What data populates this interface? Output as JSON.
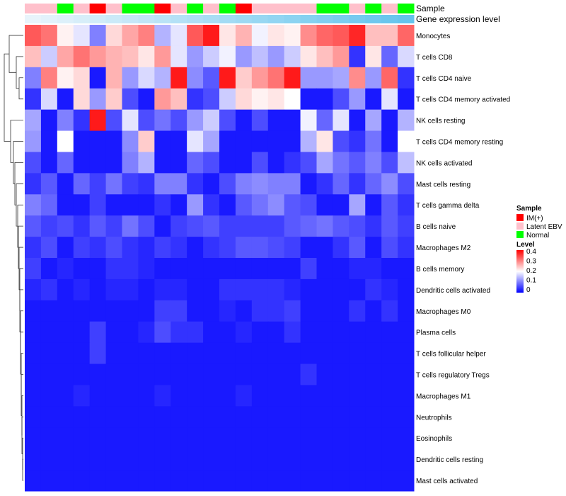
{
  "chart_data": {
    "type": "heatmap",
    "title": "",
    "annotation_labels": {
      "sample": "Sample",
      "expression": "Gene expression level"
    },
    "colors": {
      "low": "#0000ff",
      "mid": "#ffffff",
      "high": "#ff0000",
      "IM(+)": "#ff0000",
      "Latent EBV": "#ffc0cb",
      "Normal": "#00ff00"
    },
    "value_range": [
      0,
      0.4
    ],
    "value_mid": 0.2,
    "column_sample_types": [
      "Latent EBV",
      "Latent EBV",
      "Normal",
      "Latent EBV",
      "IM(+)",
      "Latent EBV",
      "Normal",
      "Normal",
      "IM(+)",
      "Latent EBV",
      "Normal",
      "Latent EBV",
      "Normal",
      "IM(+)",
      "Latent EBV",
      "Latent EBV",
      "Latent EBV",
      "Latent EBV",
      "Normal",
      "Normal",
      "Latent EBV",
      "Normal",
      "Latent EBV",
      "Normal"
    ],
    "column_expression_level": [
      0.04,
      0.08,
      0.12,
      0.16,
      0.2,
      0.24,
      0.28,
      0.32,
      0.36,
      0.4,
      0.44,
      0.48,
      0.52,
      0.56,
      0.6,
      0.64,
      0.68,
      0.72,
      0.76,
      0.8,
      0.84,
      0.88,
      0.92,
      0.96
    ],
    "rows": [
      "Monocytes",
      "T cells CD8",
      "T cells CD4 naive",
      "T cells CD4 memory activated",
      "NK cells resting",
      "T cells CD4 memory resting",
      "NK cells activated",
      "Mast cells resting",
      "T cells gamma delta",
      "B cells naive",
      "Macrophages M2",
      "B cells memory",
      "Dendritic cells activated",
      "Macrophages M0",
      "Plasma cells",
      "T cells follicular helper",
      "T cells regulatory  Tregs",
      "Macrophages M1",
      "Neutrophils",
      "Eosinophils",
      "Dendritic cells resting",
      "Mast cells activated"
    ],
    "values": [
      [
        0.33,
        0.31,
        0.21,
        0.18,
        0.1,
        0.23,
        0.27,
        0.3,
        0.14,
        0.18,
        0.33,
        0.38,
        0.22,
        0.26,
        0.19,
        0.22,
        0.21,
        0.29,
        0.32,
        0.33,
        0.37,
        0.25,
        0.25,
        0.32
      ],
      [
        0.25,
        0.16,
        0.27,
        0.31,
        0.28,
        0.26,
        0.25,
        0.22,
        0.28,
        0.18,
        0.12,
        0.16,
        0.19,
        0.12,
        0.15,
        0.12,
        0.16,
        0.22,
        0.25,
        0.28,
        0.04,
        0.22,
        0.08,
        0.17
      ],
      [
        0.1,
        0.3,
        0.21,
        0.23,
        0.02,
        0.26,
        0.12,
        0.17,
        0.14,
        0.38,
        0.11,
        0.07,
        0.38,
        0.24,
        0.28,
        0.31,
        0.38,
        0.12,
        0.12,
        0.13,
        0.29,
        0.12,
        0.32,
        0.04
      ],
      [
        0.04,
        0.17,
        0.02,
        0.23,
        0.12,
        0.24,
        0.06,
        0.02,
        0.28,
        0.25,
        0.04,
        0.06,
        0.16,
        0.23,
        0.21,
        0.22,
        0.2,
        0.02,
        0.02,
        0.06,
        0.12,
        0.02,
        0.18,
        0.02
      ],
      [
        0.13,
        0.02,
        0.1,
        0.04,
        0.38,
        0.06,
        0.18,
        0.06,
        0.09,
        0.06,
        0.12,
        0.16,
        0.06,
        0.02,
        0.06,
        0.02,
        0.02,
        0.19,
        0.08,
        0.18,
        0.02,
        0.13,
        0.02,
        0.14
      ],
      [
        0.12,
        0.02,
        0.2,
        0.02,
        0.02,
        0.02,
        0.11,
        0.24,
        0.02,
        0.02,
        0.18,
        0.13,
        0.02,
        0.02,
        0.02,
        0.02,
        0.02,
        0.14,
        0.22,
        0.06,
        0.04,
        0.09,
        0.02,
        0.2
      ],
      [
        0.06,
        0.02,
        0.08,
        0.02,
        0.02,
        0.02,
        0.1,
        0.14,
        0.02,
        0.02,
        0.08,
        0.06,
        0.02,
        0.02,
        0.06,
        0.02,
        0.04,
        0.06,
        0.13,
        0.09,
        0.07,
        0.1,
        0.06,
        0.15
      ],
      [
        0.04,
        0.07,
        0.02,
        0.08,
        0.05,
        0.09,
        0.05,
        0.04,
        0.1,
        0.1,
        0.04,
        0.02,
        0.06,
        0.1,
        0.11,
        0.1,
        0.1,
        0.02,
        0.04,
        0.08,
        0.04,
        0.08,
        0.11,
        0.06
      ],
      [
        0.1,
        0.08,
        0.02,
        0.02,
        0.05,
        0.02,
        0.02,
        0.02,
        0.04,
        0.02,
        0.12,
        0.04,
        0.02,
        0.07,
        0.09,
        0.11,
        0.07,
        0.06,
        0.02,
        0.02,
        0.13,
        0.02,
        0.07,
        0.04
      ],
      [
        0.07,
        0.05,
        0.06,
        0.04,
        0.07,
        0.05,
        0.09,
        0.06,
        0.02,
        0.05,
        0.06,
        0.07,
        0.05,
        0.05,
        0.05,
        0.05,
        0.07,
        0.08,
        0.09,
        0.07,
        0.06,
        0.04,
        0.07,
        0.05
      ],
      [
        0.04,
        0.06,
        0.02,
        0.05,
        0.04,
        0.06,
        0.04,
        0.03,
        0.05,
        0.04,
        0.02,
        0.04,
        0.05,
        0.07,
        0.07,
        0.06,
        0.05,
        0.02,
        0.02,
        0.04,
        0.07,
        0.02,
        0.06,
        0.04
      ],
      [
        0.05,
        0.02,
        0.03,
        0.02,
        0.02,
        0.04,
        0.04,
        0.03,
        0.02,
        0.02,
        0.02,
        0.02,
        0.02,
        0.02,
        0.02,
        0.02,
        0.02,
        0.05,
        0.02,
        0.02,
        0.03,
        0.03,
        0.02,
        0.02
      ],
      [
        0.03,
        0.04,
        0.02,
        0.03,
        0.02,
        0.03,
        0.03,
        0.02,
        0.03,
        0.03,
        0.02,
        0.02,
        0.04,
        0.04,
        0.04,
        0.04,
        0.03,
        0.02,
        0.02,
        0.02,
        0.02,
        0.04,
        0.03,
        0.02
      ],
      [
        0.02,
        0.02,
        0.02,
        0.02,
        0.02,
        0.02,
        0.02,
        0.02,
        0.05,
        0.05,
        0.02,
        0.02,
        0.03,
        0.02,
        0.04,
        0.04,
        0.05,
        0.02,
        0.02,
        0.02,
        0.04,
        0.02,
        0.04,
        0.02
      ],
      [
        0.02,
        0.02,
        0.02,
        0.02,
        0.05,
        0.02,
        0.02,
        0.03,
        0.06,
        0.04,
        0.04,
        0.02,
        0.02,
        0.03,
        0.02,
        0.02,
        0.04,
        0.02,
        0.02,
        0.02,
        0.02,
        0.02,
        0.02,
        0.02
      ],
      [
        0.02,
        0.02,
        0.02,
        0.02,
        0.05,
        0.02,
        0.02,
        0.02,
        0.02,
        0.02,
        0.02,
        0.02,
        0.02,
        0.02,
        0.02,
        0.02,
        0.02,
        0.02,
        0.02,
        0.02,
        0.02,
        0.02,
        0.02,
        0.02
      ],
      [
        0.02,
        0.02,
        0.02,
        0.02,
        0.02,
        0.02,
        0.02,
        0.02,
        0.02,
        0.02,
        0.02,
        0.02,
        0.02,
        0.02,
        0.02,
        0.02,
        0.02,
        0.04,
        0.02,
        0.02,
        0.02,
        0.02,
        0.02,
        0.02
      ],
      [
        0.02,
        0.02,
        0.02,
        0.03,
        0.02,
        0.02,
        0.02,
        0.02,
        0.03,
        0.02,
        0.02,
        0.02,
        0.02,
        0.03,
        0.02,
        0.02,
        0.02,
        0.02,
        0.02,
        0.02,
        0.02,
        0.02,
        0.02,
        0.02
      ],
      [
        0.02,
        0.02,
        0.02,
        0.02,
        0.02,
        0.02,
        0.02,
        0.02,
        0.02,
        0.02,
        0.02,
        0.02,
        0.02,
        0.02,
        0.02,
        0.02,
        0.02,
        0.02,
        0.02,
        0.02,
        0.02,
        0.02,
        0.02,
        0.02
      ],
      [
        0.02,
        0.02,
        0.02,
        0.02,
        0.02,
        0.02,
        0.02,
        0.02,
        0.02,
        0.02,
        0.02,
        0.02,
        0.02,
        0.02,
        0.02,
        0.02,
        0.02,
        0.02,
        0.02,
        0.02,
        0.02,
        0.02,
        0.02,
        0.02
      ],
      [
        0.02,
        0.02,
        0.02,
        0.02,
        0.02,
        0.02,
        0.02,
        0.02,
        0.02,
        0.02,
        0.02,
        0.02,
        0.02,
        0.02,
        0.02,
        0.02,
        0.02,
        0.02,
        0.02,
        0.02,
        0.02,
        0.02,
        0.02,
        0.02
      ],
      [
        0.02,
        0.02,
        0.02,
        0.02,
        0.02,
        0.02,
        0.02,
        0.02,
        0.02,
        0.02,
        0.02,
        0.02,
        0.02,
        0.02,
        0.02,
        0.02,
        0.02,
        0.02,
        0.02,
        0.02,
        0.02,
        0.02,
        0.02,
        0.02
      ]
    ],
    "legend": {
      "sample_title": "Sample",
      "sample_entries": [
        "IM(+)",
        "Latent EBV",
        "Normal"
      ],
      "level_title": "Level",
      "level_ticks": [
        "0.4",
        "0.3",
        "0.2",
        "0.1",
        "0"
      ]
    }
  }
}
